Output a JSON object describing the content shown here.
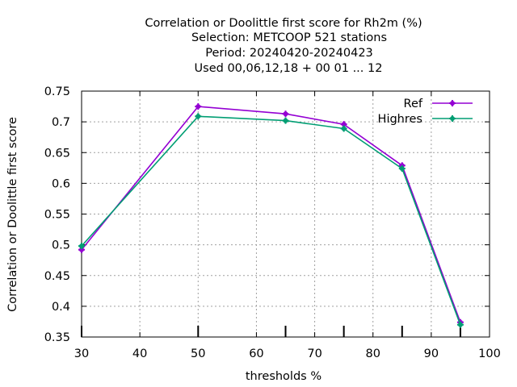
{
  "chart_data": {
    "type": "line",
    "title_lines": [
      "Correlation or Doolittle first score  for Rh2m (%)",
      "Selection: METCOOP    521 stations",
      "Period: 20240420-20240423",
      "Used  00,06,12,18 + 00 01 ... 12"
    ],
    "xlabel": "thresholds %",
    "ylabel": "Correlation or Doolittle first score",
    "xlim": [
      30,
      100
    ],
    "ylim": [
      0.35,
      0.75
    ],
    "xticks": [
      30,
      40,
      50,
      60,
      70,
      80,
      90,
      100
    ],
    "yticks": [
      0.35,
      0.4,
      0.45,
      0.5,
      0.55,
      0.6,
      0.65,
      0.7,
      0.75
    ],
    "xtick_labels": [
      "30",
      "40",
      "50",
      "60",
      "70",
      "80",
      "90",
      "100"
    ],
    "ytick_labels": [
      "0.35",
      "0.4",
      "0.45",
      "0.5",
      "0.55",
      "0.6",
      "0.65",
      "0.7",
      "0.75"
    ],
    "grid": true,
    "legend_position": "top-right",
    "x": [
      30,
      50,
      65,
      75,
      85,
      95
    ],
    "series": [
      {
        "name": "Ref",
        "color": "#9400d3",
        "values": [
          0.492,
          0.725,
          0.713,
          0.696,
          0.629,
          0.374
        ]
      },
      {
        "name": "Highres",
        "color": "#009e73",
        "values": [
          0.498,
          0.709,
          0.702,
          0.689,
          0.624,
          0.37
        ]
      }
    ]
  }
}
